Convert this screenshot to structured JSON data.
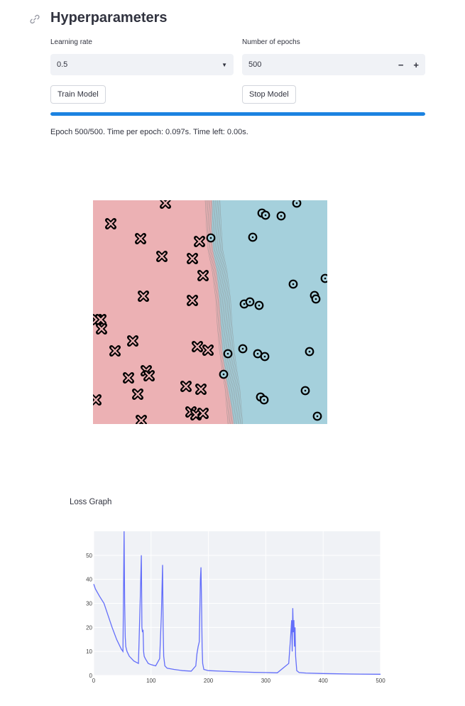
{
  "header": {
    "title": "Hyperparameters",
    "link_icon": "link-icon"
  },
  "learning_rate": {
    "label": "Learning rate",
    "value": "0.5"
  },
  "epochs": {
    "label": "Number of epochs",
    "value": "500",
    "minus": "−",
    "plus": "+"
  },
  "buttons": {
    "train": "Train Model",
    "stop": "Stop Model"
  },
  "progress": {
    "fraction": 1.0,
    "color": "#1c83e1"
  },
  "status": "Epoch 500/500. Time per epoch: 0.097s. Time left: 0.00s.",
  "colors": {
    "class_x_region": "#ecb1b4",
    "class_o_region": "#a5d0dc",
    "loss_line": "#636efa",
    "plot_bg": "#f0f2f6"
  },
  "chart_data": {
    "type": "line",
    "title": "Loss Graph",
    "xlabel": "",
    "ylabel": "",
    "xlim": [
      0,
      500
    ],
    "ylim": [
      0,
      60
    ],
    "xticks": [
      0,
      100,
      200,
      300,
      400,
      500
    ],
    "yticks": [
      0,
      10,
      20,
      30,
      40,
      50
    ],
    "grid": true,
    "series": [
      {
        "x": [
          0,
          3,
          10,
          18,
          25,
          32,
          40,
          48,
          51,
          53,
          54,
          55,
          56,
          58,
          62,
          70,
          78,
          81,
          83,
          84,
          85,
          86,
          87,
          88,
          90,
          95,
          100,
          108,
          115,
          118,
          120,
          121,
          122,
          124,
          128,
          140,
          155,
          170,
          178,
          180,
          182,
          184,
          186,
          187,
          188,
          189,
          190,
          192,
          200,
          220,
          250,
          280,
          300,
          320,
          340,
          343,
          345,
          346,
          347,
          348,
          349,
          350,
          351,
          352,
          354,
          358,
          370,
          400,
          450,
          500
        ],
        "y": [
          38,
          36,
          33,
          30,
          25,
          20,
          15,
          11,
          10,
          60,
          30,
          16,
          12,
          10,
          8,
          6,
          5,
          30,
          50,
          20,
          18,
          19,
          10,
          8,
          7,
          5,
          4.5,
          4,
          7,
          25,
          46,
          20,
          8,
          4,
          3,
          2.5,
          2,
          1.8,
          4,
          9,
          12,
          14,
          40,
          45,
          30,
          12,
          5,
          2.5,
          2,
          1.8,
          1.5,
          1.3,
          1.2,
          1.1,
          5,
          15,
          23,
          10,
          28,
          18,
          23,
          12,
          20,
          8,
          2,
          1.2,
          1,
          0.8,
          0.6,
          0.5
        ]
      }
    ]
  }
}
